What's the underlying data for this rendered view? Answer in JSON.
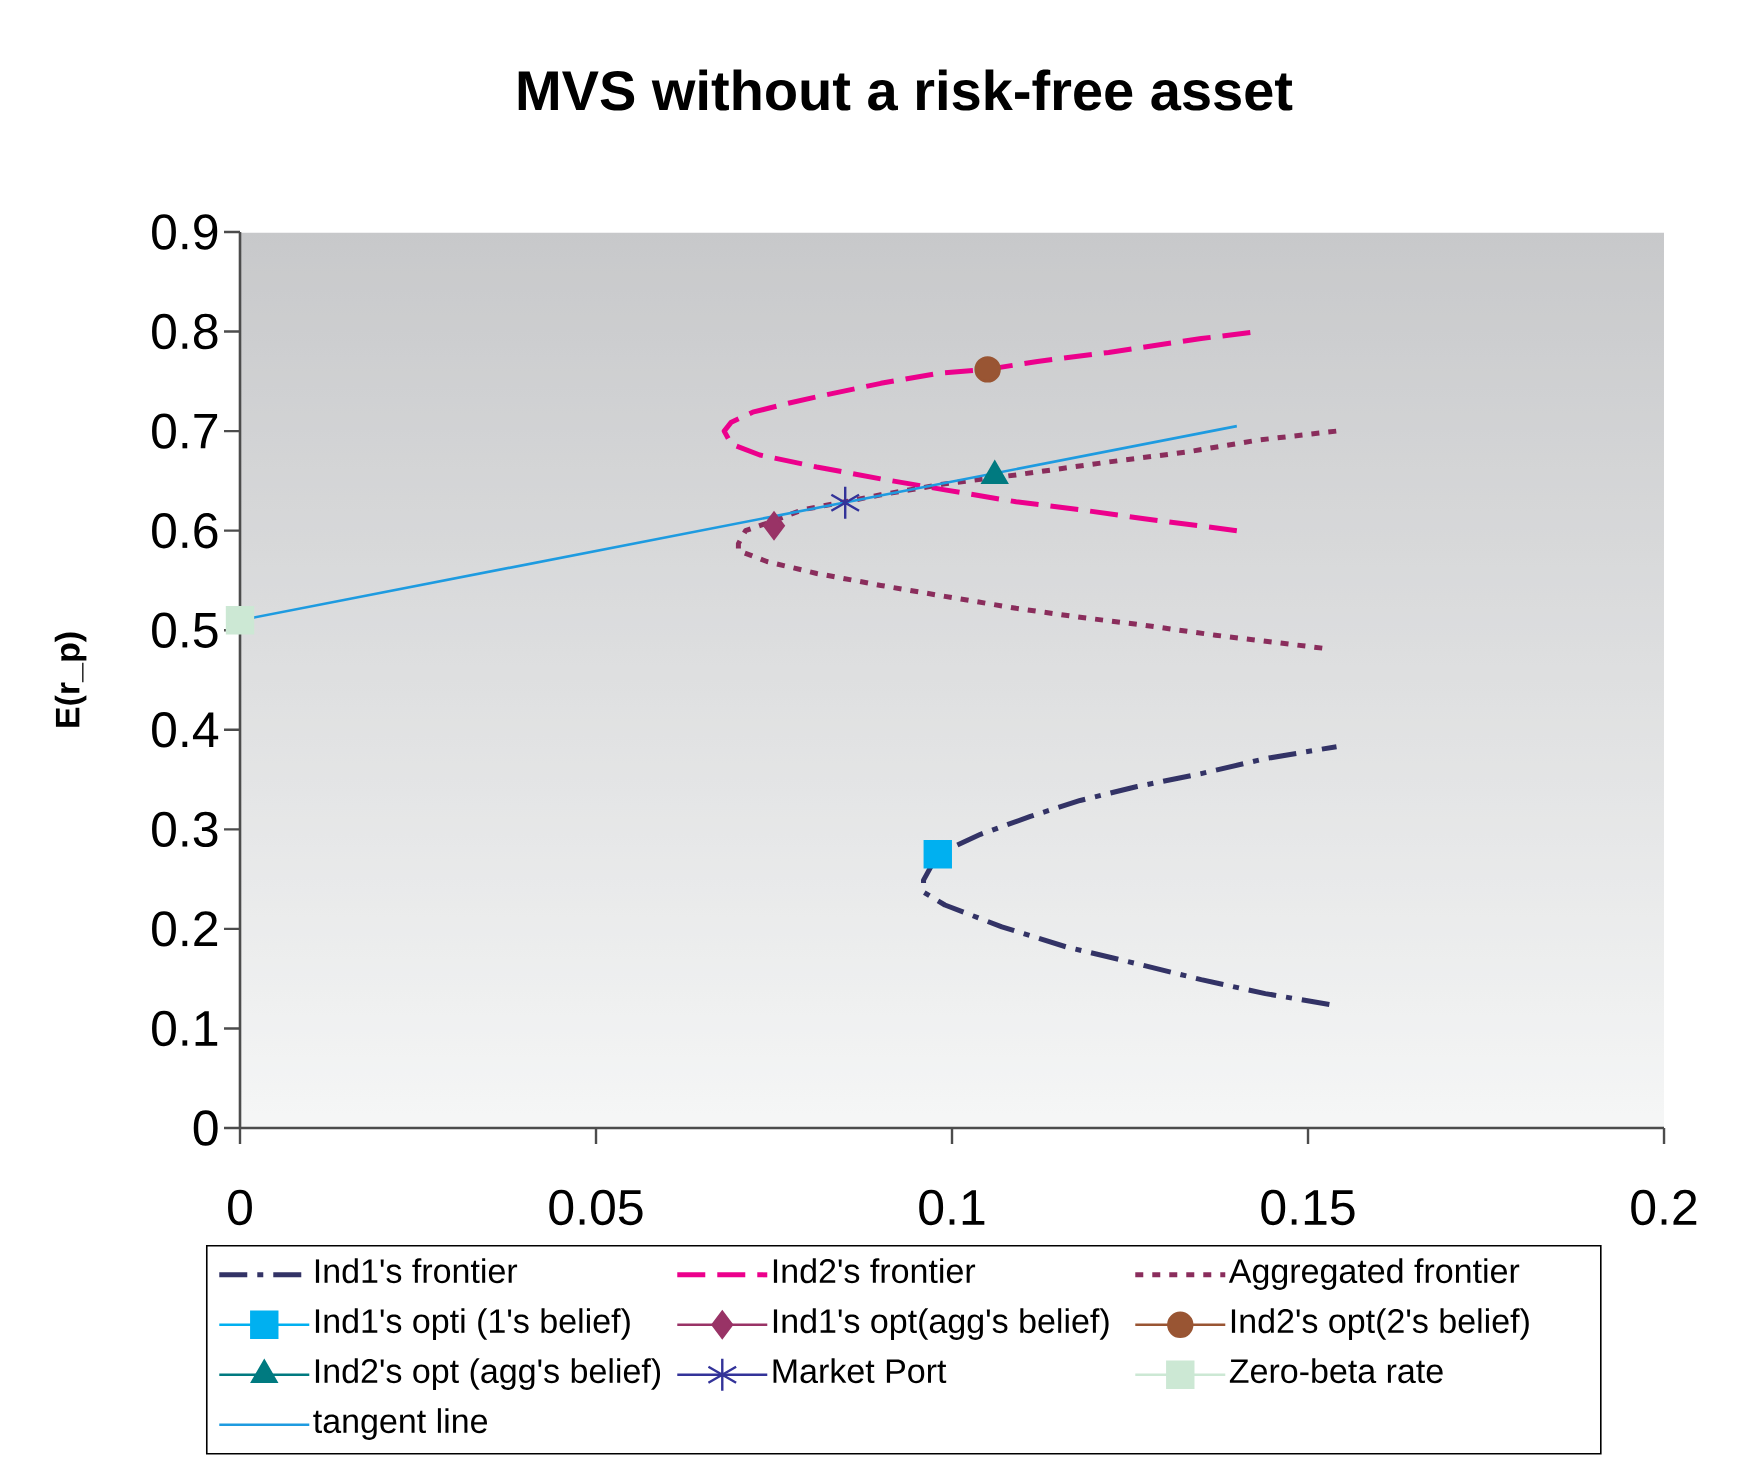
{
  "chart_data": {
    "type": "line",
    "title": "MVS without a risk-free asset",
    "ylabel": "E(r_p)",
    "xlim": [
      0,
      0.2
    ],
    "ylim": [
      0,
      0.9
    ],
    "xticks": [
      0,
      0.05,
      0.1,
      0.15,
      0.2
    ],
    "yticks": [
      0,
      0.1,
      0.2,
      0.3,
      0.4,
      0.5,
      0.6,
      0.7,
      0.8,
      0.9
    ],
    "legend": "bottom",
    "series": [
      {
        "name": "Ind1's frontier",
        "color": "#333366",
        "line_style": "dashdot",
        "x": [
          0.153,
          0.144,
          0.135,
          0.126,
          0.116,
          0.107,
          0.099,
          0.096,
          0.096,
          0.097,
          0.098,
          0.104,
          0.111,
          0.118,
          0.126,
          0.135,
          0.144,
          0.154
        ],
        "values": [
          0.124,
          0.135,
          0.149,
          0.165,
          0.182,
          0.202,
          0.224,
          0.237,
          0.249,
          0.262,
          0.275,
          0.295,
          0.313,
          0.329,
          0.343,
          0.356,
          0.371,
          0.383
        ]
      },
      {
        "name": "Ind2's frontier",
        "color": "#EC008C",
        "line_style": "dashed",
        "x": [
          0.14,
          0.127,
          0.118,
          0.109,
          0.099,
          0.09,
          0.081,
          0.073,
          0.069,
          0.068,
          0.069,
          0.072,
          0.077,
          0.082,
          0.09,
          0.098,
          0.105,
          0.112,
          0.122,
          0.135,
          0.143
        ],
        "values": [
          0.6,
          0.612,
          0.621,
          0.629,
          0.641,
          0.652,
          0.664,
          0.676,
          0.687,
          0.7,
          0.709,
          0.719,
          0.728,
          0.736,
          0.748,
          0.758,
          0.762,
          0.77,
          0.779,
          0.793,
          0.8
        ]
      },
      {
        "name": "Aggregated frontier",
        "color": "#8A2D5C",
        "line_style": "dotted",
        "x": [
          0.152,
          0.137,
          0.127,
          0.118,
          0.109,
          0.099,
          0.09,
          0.081,
          0.074,
          0.07,
          0.07,
          0.071,
          0.075,
          0.079,
          0.085,
          0.09,
          0.099,
          0.109,
          0.122,
          0.133,
          0.143,
          0.154
        ],
        "values": [
          0.482,
          0.495,
          0.505,
          0.513,
          0.522,
          0.534,
          0.545,
          0.557,
          0.569,
          0.58,
          0.587,
          0.6,
          0.61,
          0.621,
          0.629,
          0.636,
          0.647,
          0.656,
          0.669,
          0.679,
          0.691,
          0.7
        ]
      },
      {
        "name": "Ind1's opti (1's belief)",
        "type": "scatter",
        "color": "#00B0F0",
        "marker": "square",
        "x": [
          0.098
        ],
        "values": [
          0.275
        ]
      },
      {
        "name": "Ind1's opt(agg's belief)",
        "type": "scatter",
        "color": "#993366",
        "marker": "diamond",
        "x": [
          0.075
        ],
        "values": [
          0.605
        ]
      },
      {
        "name": "Ind2's opt(2's belief)",
        "type": "scatter",
        "color": "#995533",
        "marker": "circle",
        "x": [
          0.105
        ],
        "values": [
          0.762
        ]
      },
      {
        "name": "Ind2's opt (agg's belief)",
        "type": "scatter",
        "color": "#007A80",
        "marker": "triangle",
        "x": [
          0.106
        ],
        "values": [
          0.655
        ]
      },
      {
        "name": "Market Port",
        "type": "scatter",
        "color": "#333399",
        "marker": "cross",
        "x": [
          0.085
        ],
        "values": [
          0.628
        ]
      },
      {
        "name": "Zero-beta rate",
        "type": "scatter",
        "color": "#CCE8D4",
        "marker": "square",
        "x": [
          0
        ],
        "values": [
          0.51
        ]
      },
      {
        "name": "tangent line",
        "color": "#1E9BE0",
        "line_style": "solid",
        "x": [
          0,
          0.14
        ],
        "values": [
          0.51,
          0.705
        ]
      }
    ]
  }
}
